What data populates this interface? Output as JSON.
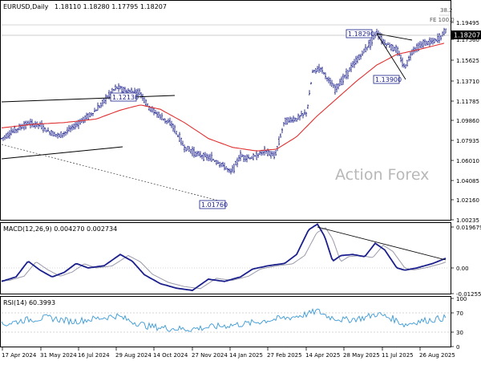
{
  "header": {
    "symbol": "EURUSD,Daily",
    "ohlc": "1.18110 1.18280 1.17795 1.18207"
  },
  "price_panel": {
    "y_ticks": [
      "1.19495",
      "1.17560",
      "1.15625",
      "1.13710",
      "1.11785",
      "1.09860",
      "1.07935",
      "1.06010",
      "1.04085",
      "1.02160",
      "1.00235"
    ],
    "current_price": "1.18207",
    "fe_label": "FE 100.0",
    "fib_label": "38.2",
    "watermark": "Action Forex",
    "callouts": [
      "1.18290",
      "1.13900",
      "1.12130",
      "1.01760"
    ]
  },
  "macd_panel": {
    "label": "MACD(12,26,9) 0.004270 0.002734",
    "y_ticks": [
      "0.019679",
      "0.00",
      "-0.012552"
    ]
  },
  "rsi_panel": {
    "label": "RSI(14) 60.3993",
    "y_ticks": [
      "100",
      "70",
      "30",
      "0"
    ]
  },
  "x_axis": {
    "ticks": [
      "17 Apr 2024",
      "31 May 2024",
      "16 Jul 2024",
      "29 Aug 2024",
      "14 Oct 2024",
      "27 Nov 2024",
      "14 Jan 2025",
      "27 Feb 2025",
      "14 Apr 2025",
      "28 May 2025",
      "11 Jul 2025",
      "26 Aug 2025"
    ]
  },
  "colors": {
    "bars": "#1a1f8c",
    "ma": "#e03030",
    "macd": "#1a1f8c",
    "signal": "#9a9aaa",
    "rsi": "#3a9ad9",
    "callout_border": "#1a1f8c"
  },
  "chart_data": [
    {
      "type": "line",
      "title": "EURUSD,Daily",
      "ylim": [
        1.0,
        1.2
      ],
      "x": [
        "17 Apr 2024",
        "31 May 2024",
        "16 Jul 2024",
        "29 Aug 2024",
        "14 Oct 2024",
        "27 Nov 2024",
        "14 Jan 2025",
        "27 Feb 2025",
        "14 Apr 2025",
        "28 May 2025",
        "11 Jul 2025",
        "26 Aug 2025"
      ],
      "series": [
        {
          "values": [
            1.065,
            1.085,
            1.085,
            1.112,
            1.092,
            1.05,
            1.03,
            1.04,
            1.135,
            1.145,
            1.168,
            1.172
          ]
        },
        {
          "values": [
            1.075,
            1.08,
            1.082,
            1.095,
            1.09,
            1.07,
            1.04,
            1.042,
            1.085,
            1.115,
            1.155,
            1.17
          ]
        }
      ],
      "annotations": [
        "1.18290",
        "1.13900",
        "1.12130",
        "1.01760"
      ]
    },
    {
      "type": "line",
      "title": "MACD(12,26,9) 0.004270 0.002734",
      "ylim": [
        -0.0125,
        0.0197
      ],
      "x": [
        "17 Apr 2024",
        "31 May 2024",
        "16 Jul 2024",
        "29 Aug 2024",
        "14 Oct 2024",
        "27 Nov 2024",
        "14 Jan 2025",
        "27 Feb 2025",
        "14 Apr 2025",
        "28 May 2025",
        "11 Jul 2025",
        "26 Aug 2025"
      ],
      "series": [
        {
          "values": [
            -0.006,
            0.002,
            0.0,
            0.004,
            -0.004,
            -0.009,
            -0.005,
            0.001,
            0.018,
            0.009,
            0.0,
            0.004
          ]
        },
        {
          "values": [
            -0.005,
            0.001,
            0.001,
            0.003,
            -0.002,
            -0.008,
            -0.006,
            0.0,
            0.014,
            0.009,
            0.001,
            0.003
          ]
        }
      ]
    },
    {
      "type": "line",
      "title": "RSI(14) 60.3993",
      "ylim": [
        0,
        100
      ],
      "x": [
        "17 Apr 2024",
        "31 May 2024",
        "16 Jul 2024",
        "29 Aug 2024",
        "14 Oct 2024",
        "27 Nov 2024",
        "14 Jan 2025",
        "27 Feb 2025",
        "14 Apr 2025",
        "28 May 2025",
        "11 Jul 2025",
        "26 Aug 2025"
      ],
      "series": [
        {
          "values": [
            45,
            60,
            55,
            62,
            40,
            35,
            48,
            58,
            72,
            58,
            48,
            60
          ]
        }
      ]
    }
  ]
}
